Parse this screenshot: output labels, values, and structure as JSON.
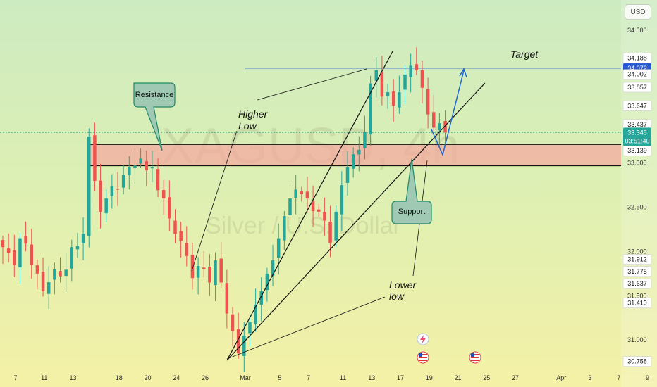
{
  "header": {
    "currency_label": "USD"
  },
  "watermark": {
    "symbol": "XAGUSD, 4h",
    "description": "Silver / U.S. Dollar"
  },
  "chart_data": {
    "type": "candlestick",
    "symbol": "XAGUSD",
    "timeframe": "4h",
    "y_range": [
      30.66,
      34.62
    ],
    "y_ticks": [
      "34.500",
      "33.000",
      "32.500",
      "32.000",
      "31.500",
      "31.000"
    ],
    "x_tick_labels": [
      "7",
      "11",
      "13",
      "18",
      "20",
      "24",
      "26",
      "Mar",
      "5",
      "7",
      "11",
      "13",
      "17",
      "19",
      "21",
      "25",
      "27",
      "Apr",
      "3",
      "7",
      "9"
    ],
    "x_tick_index": [
      0,
      5,
      10,
      18,
      23,
      28,
      33,
      40,
      46,
      51,
      57,
      62,
      67,
      72,
      77,
      82,
      87,
      95,
      100,
      105,
      110
    ],
    "price_labels": [
      {
        "text": "34.188",
        "price": 34.188,
        "style": "plain"
      },
      {
        "text": "34.072",
        "price": 34.072,
        "style": "blue"
      },
      {
        "text": "34.002",
        "price": 34.002,
        "style": "plain"
      },
      {
        "text": "33.857",
        "price": 33.857,
        "style": "plain"
      },
      {
        "text": "33.647",
        "price": 33.647,
        "style": "plain"
      },
      {
        "text": "33.437",
        "price": 33.437,
        "style": "plain"
      },
      {
        "text": "33.345",
        "price": 33.345,
        "style": "green",
        "sub": "03:51:40"
      },
      {
        "text": "33.139",
        "price": 33.139,
        "style": "plain"
      },
      {
        "text": "31.912",
        "price": 31.912,
        "style": "plain"
      },
      {
        "text": "31.775",
        "price": 31.775,
        "style": "plain"
      },
      {
        "text": "31.637",
        "price": 31.637,
        "style": "plain"
      },
      {
        "text": "31.419",
        "price": 31.419,
        "style": "plain"
      },
      {
        "text": "30.758",
        "price": 30.758,
        "style": "plain"
      }
    ],
    "zone": {
      "top": 33.21,
      "bottom": 32.97
    },
    "target_price": 34.072,
    "current_price": 33.345,
    "countdown": "03:51:40",
    "colors": {
      "up": "#26a69a",
      "down": "#ef5350",
      "zone_fill": "#f4a9a0",
      "target_line": "#2a5bd7",
      "projection": "#1f66d1",
      "current_line": "#26a69a"
    },
    "waypoints": [
      [
        0,
        32.05
      ],
      [
        2,
        31.85
      ],
      [
        3,
        32.15
      ],
      [
        5,
        31.85
      ],
      [
        7,
        31.55
      ],
      [
        9,
        31.8
      ],
      [
        10,
        31.72
      ],
      [
        12,
        32.05
      ],
      [
        14,
        32.2
      ],
      [
        15,
        33.3
      ],
      [
        16,
        32.8
      ],
      [
        17,
        32.45
      ],
      [
        18,
        32.6
      ],
      [
        20,
        32.7
      ],
      [
        22,
        32.95
      ],
      [
        24,
        33.05
      ],
      [
        26,
        32.95
      ],
      [
        28,
        32.6
      ],
      [
        30,
        32.2
      ],
      [
        32,
        31.95
      ],
      [
        33,
        31.7
      ],
      [
        35,
        31.8
      ],
      [
        36,
        31.65
      ],
      [
        37,
        31.9
      ],
      [
        38,
        31.65
      ],
      [
        39,
        31.3
      ],
      [
        40,
        31.1
      ],
      [
        41,
        30.85
      ],
      [
        42,
        31.05
      ],
      [
        43,
        31.2
      ],
      [
        44,
        31.4
      ],
      [
        45,
        31.55
      ],
      [
        46,
        31.75
      ],
      [
        47,
        31.9
      ],
      [
        48,
        32.15
      ],
      [
        49,
        32.4
      ],
      [
        50,
        32.6
      ],
      [
        51,
        32.7
      ],
      [
        53,
        32.6
      ],
      [
        55,
        32.45
      ],
      [
        56,
        32.35
      ],
      [
        57,
        32.1
      ],
      [
        58,
        32.45
      ],
      [
        59,
        32.75
      ],
      [
        60,
        32.95
      ],
      [
        61,
        33.1
      ],
      [
        62,
        33.15
      ],
      [
        63,
        33.35
      ],
      [
        64,
        33.9
      ],
      [
        65,
        34.05
      ],
      [
        66,
        33.75
      ],
      [
        67,
        33.8
      ],
      [
        68,
        33.65
      ],
      [
        69,
        33.8
      ],
      [
        70,
        34.0
      ],
      [
        71,
        34.1
      ],
      [
        72,
        34.05
      ],
      [
        73,
        33.85
      ],
      [
        74,
        33.55
      ],
      [
        75,
        33.4
      ],
      [
        76,
        33.45
      ],
      [
        77,
        33.345
      ]
    ],
    "annotations": [
      {
        "id": "higher-low",
        "lines": [
          "Higher",
          "Low"
        ]
      },
      {
        "id": "lower-low",
        "lines": [
          "Lower",
          "low"
        ]
      },
      {
        "id": "target",
        "text": "Target"
      },
      {
        "id": "resistance",
        "text": "Resistance"
      },
      {
        "id": "support",
        "text": "Support"
      }
    ],
    "event_icons": [
      "flash-icon",
      "us-flag-icon",
      "us-flag-icon"
    ]
  }
}
